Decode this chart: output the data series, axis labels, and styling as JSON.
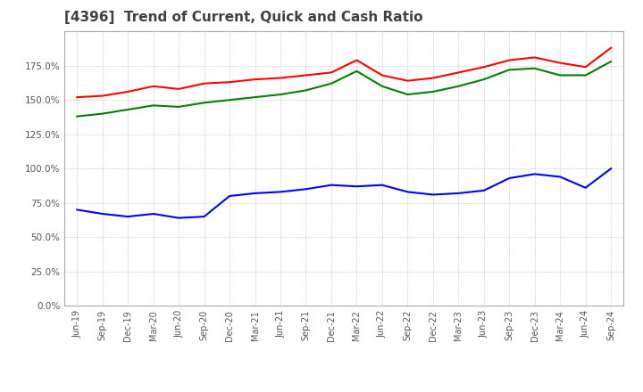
{
  "title": "[4396]  Trend of Current, Quick and Cash Ratio",
  "x_labels": [
    "Jun-19",
    "Sep-19",
    "Dec-19",
    "Mar-20",
    "Jun-20",
    "Sep-20",
    "Dec-20",
    "Mar-21",
    "Jun-21",
    "Sep-21",
    "Dec-21",
    "Mar-22",
    "Jun-22",
    "Sep-22",
    "Dec-22",
    "Mar-23",
    "Jun-23",
    "Sep-23",
    "Dec-23",
    "Mar-24",
    "Jun-24",
    "Sep-24"
  ],
  "current_ratio": [
    152.0,
    153.0,
    156.0,
    160.0,
    158.0,
    162.0,
    163.0,
    165.0,
    166.0,
    168.0,
    170.0,
    179.0,
    168.0,
    164.0,
    166.0,
    170.0,
    174.0,
    179.0,
    181.0,
    177.0,
    174.0,
    188.0
  ],
  "quick_ratio": [
    138.0,
    140.0,
    143.0,
    146.0,
    145.0,
    148.0,
    150.0,
    152.0,
    154.0,
    157.0,
    162.0,
    171.0,
    160.0,
    154.0,
    156.0,
    160.0,
    165.0,
    172.0,
    173.0,
    168.0,
    168.0,
    178.0
  ],
  "cash_ratio": [
    70.0,
    67.0,
    65.0,
    67.0,
    64.0,
    65.0,
    80.0,
    82.0,
    83.0,
    85.0,
    88.0,
    87.0,
    88.0,
    83.0,
    81.0,
    82.0,
    84.0,
    93.0,
    96.0,
    94.0,
    86.0,
    100.0
  ],
  "current_color": "#ff0000",
  "quick_color": "#008000",
  "cash_color": "#0000ff",
  "ylim": [
    0,
    200
  ],
  "yticks": [
    0,
    25,
    50,
    75,
    100,
    125,
    150,
    175
  ],
  "background_color": "#ffffff",
  "grid_color": "#aaaaaa",
  "title_color": "#404040",
  "title_fontsize": 11
}
